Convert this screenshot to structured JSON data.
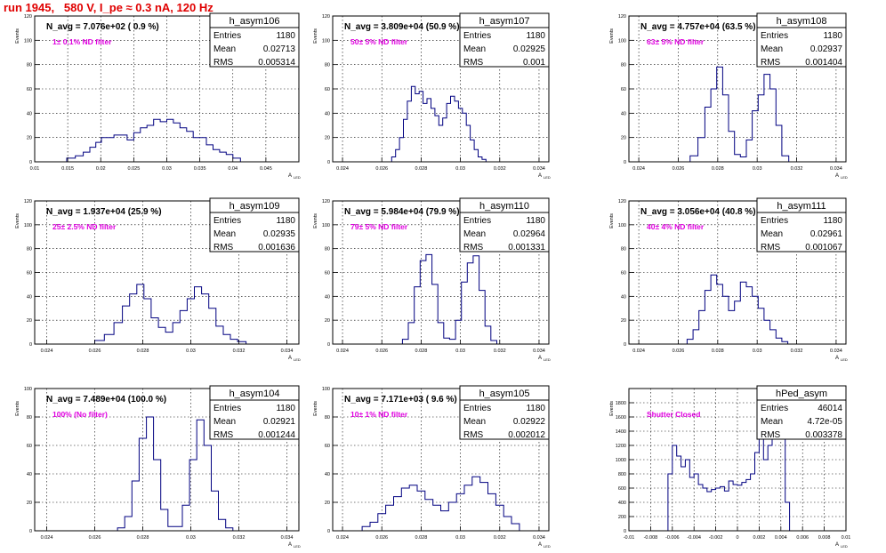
{
  "header": {
    "title": "run 1945,   580 V, I_pe ≈ 0.3 nA, 120 Hz"
  },
  "colors": {
    "title": "#e00000",
    "histogram": "#000080",
    "annotation": "#e000e0",
    "grid": "#000000"
  },
  "axis_labels": {
    "y": "Events",
    "x": "A",
    "x_sub": "LED",
    "stat_entries": "Entries",
    "stat_mean": "Mean",
    "stat_rms": "RMS"
  },
  "chart_data": [
    {
      "type": "bar",
      "name": "h_asym106",
      "title": "N_avg = 7.076e+02 ( 0.9 %)",
      "annotation": "1± 0.1% ND filter",
      "entries": "1180",
      "mean": "0.02713",
      "rms": "0.005314",
      "xlim": [
        0.01,
        0.05
      ],
      "ylim": [
        0,
        120
      ],
      "xticks": [
        "0.01",
        "0.015",
        "0.02",
        "0.025",
        "0.03",
        "0.035",
        "0.04",
        "0.045"
      ],
      "xtick_values": [
        0.01,
        0.015,
        0.02,
        0.025,
        0.03,
        0.035,
        0.04,
        0.045
      ],
      "yticks": [
        0,
        20,
        40,
        60,
        80,
        100,
        120
      ],
      "x": [
        0.0155,
        0.0168,
        0.0179,
        0.0188,
        0.0197,
        0.0205,
        0.0215,
        0.0225,
        0.0235,
        0.0245,
        0.0255,
        0.0265,
        0.0275,
        0.0285,
        0.0295,
        0.0305,
        0.0315,
        0.0325,
        0.0335,
        0.0345,
        0.0355,
        0.0365,
        0.0375,
        0.0385,
        0.0395,
        0.0405
      ],
      "values": [
        3,
        5,
        8,
        12,
        16,
        20,
        20,
        22,
        22,
        18,
        24,
        28,
        30,
        35,
        33,
        35,
        32,
        28,
        25,
        20,
        20,
        14,
        10,
        8,
        6,
        3
      ]
    },
    {
      "type": "bar",
      "name": "h_asym107",
      "title": "N_avg = 3.809e+04 (50.9 %)",
      "annotation": "50± 5% ND filter",
      "entries": "1180",
      "mean": "0.02925",
      "rms": "0.001",
      "xlim": [
        0.0235,
        0.0345
      ],
      "ylim": [
        0,
        120
      ],
      "xticks": [
        "0.024",
        "0.026",
        "0.028",
        "0.03",
        "0.032",
        "0.034"
      ],
      "xtick_values": [
        0.024,
        0.026,
        0.028,
        0.03,
        0.032,
        0.034
      ],
      "yticks": [
        0,
        20,
        40,
        60,
        80,
        100,
        120
      ],
      "x": [
        0.0266,
        0.0268,
        0.027,
        0.0272,
        0.0274,
        0.0276,
        0.0278,
        0.028,
        0.0282,
        0.0284,
        0.0286,
        0.0288,
        0.029,
        0.0292,
        0.0294,
        0.0296,
        0.0298,
        0.03,
        0.0302,
        0.0304,
        0.0306,
        0.0308,
        0.031,
        0.0312
      ],
      "values": [
        4,
        10,
        20,
        35,
        50,
        62,
        56,
        58,
        48,
        52,
        44,
        38,
        30,
        36,
        48,
        54,
        50,
        44,
        40,
        30,
        18,
        10,
        4,
        2
      ]
    },
    {
      "type": "bar",
      "name": "h_asym108",
      "title": "N_avg = 4.757e+04 (63.5 %)",
      "annotation": "63± 5% ND filter",
      "entries": "1180",
      "mean": "0.02937",
      "rms": "0.001404",
      "xlim": [
        0.0235,
        0.0345
      ],
      "ylim": [
        0,
        120
      ],
      "xticks": [
        "0.024",
        "0.026",
        "0.028",
        "0.03",
        "0.032",
        "0.034"
      ],
      "xtick_values": [
        0.024,
        0.026,
        0.028,
        0.03,
        0.032,
        0.034
      ],
      "yticks": [
        0,
        20,
        40,
        60,
        80,
        100,
        120
      ],
      "x": [
        0.0268,
        0.0272,
        0.0275,
        0.0278,
        0.0281,
        0.0284,
        0.0287,
        0.029,
        0.0293,
        0.0296,
        0.0299,
        0.0302,
        0.0305,
        0.0308,
        0.0311,
        0.0314
      ],
      "values": [
        5,
        20,
        45,
        60,
        78,
        55,
        25,
        6,
        4,
        18,
        42,
        55,
        72,
        60,
        30,
        5
      ]
    },
    {
      "type": "bar",
      "name": "h_asym109",
      "title": "N_avg = 1.937e+04 (25.9 %)",
      "annotation": "25± 2.5% ND filter",
      "entries": "1180",
      "mean": "0.02935",
      "rms": "0.001636",
      "xlim": [
        0.0235,
        0.0345
      ],
      "ylim": [
        0,
        120
      ],
      "xticks": [
        "0.024",
        "0.026",
        "0.028",
        "0.03",
        "0.032",
        "0.034"
      ],
      "xtick_values": [
        0.024,
        0.026,
        0.028,
        0.03,
        0.032,
        0.034
      ],
      "yticks": [
        0,
        20,
        40,
        60,
        80,
        100,
        120
      ],
      "x": [
        0.0262,
        0.0266,
        0.027,
        0.0273,
        0.0276,
        0.0279,
        0.0282,
        0.0285,
        0.0288,
        0.0291,
        0.0294,
        0.0297,
        0.03,
        0.0303,
        0.0306,
        0.0309,
        0.0312,
        0.0315,
        0.0318,
        0.0321
      ],
      "values": [
        3,
        8,
        18,
        32,
        42,
        50,
        38,
        22,
        14,
        10,
        18,
        28,
        38,
        48,
        42,
        30,
        15,
        8,
        4,
        2
      ]
    },
    {
      "type": "bar",
      "name": "h_asym110",
      "title": "N_avg = 5.984e+04 (79.9 %)",
      "annotation": "79± 5% ND filter",
      "entries": "1180",
      "mean": "0.02964",
      "rms": "0.001331",
      "xlim": [
        0.0235,
        0.0345
      ],
      "ylim": [
        0,
        120
      ],
      "xticks": [
        "0.024",
        "0.026",
        "0.028",
        "0.03",
        "0.032",
        "0.034"
      ],
      "xtick_values": [
        0.024,
        0.026,
        0.028,
        0.03,
        0.032,
        0.034
      ],
      "yticks": [
        0,
        20,
        40,
        60,
        80,
        100,
        120
      ],
      "x": [
        0.0272,
        0.0275,
        0.0278,
        0.0281,
        0.0284,
        0.0287,
        0.029,
        0.0293,
        0.0296,
        0.0299,
        0.0302,
        0.0305,
        0.0308,
        0.0311,
        0.0314,
        0.0317
      ],
      "values": [
        4,
        18,
        48,
        70,
        75,
        50,
        18,
        5,
        4,
        20,
        52,
        68,
        74,
        45,
        15,
        3
      ]
    },
    {
      "type": "bar",
      "name": "h_asym111",
      "title": "N_avg = 3.056e+04 (40.8 %)",
      "annotation": "40± 4% ND filter",
      "entries": "1180",
      "mean": "0.02961",
      "rms": "0.001067",
      "xlim": [
        0.0235,
        0.0345
      ],
      "ylim": [
        0,
        120
      ],
      "xticks": [
        "0.024",
        "0.026",
        "0.028",
        "0.03",
        "0.032",
        "0.034"
      ],
      "xtick_values": [
        0.024,
        0.026,
        0.028,
        0.03,
        0.032,
        0.034
      ],
      "yticks": [
        0,
        20,
        40,
        60,
        80,
        100,
        120
      ],
      "x": [
        0.0266,
        0.0269,
        0.0272,
        0.0275,
        0.0278,
        0.0281,
        0.0284,
        0.0287,
        0.029,
        0.0293,
        0.0296,
        0.0299,
        0.0302,
        0.0305,
        0.0308,
        0.0311,
        0.0314
      ],
      "values": [
        4,
        12,
        28,
        45,
        58,
        50,
        40,
        28,
        36,
        52,
        48,
        40,
        30,
        20,
        12,
        5,
        2
      ]
    },
    {
      "type": "bar",
      "name": "h_asym104",
      "title": "N_avg = 7.489e+04 (100.0 %)",
      "annotation": "100% (No filter)",
      "entries": "1180",
      "mean": "0.02921",
      "rms": "0.001244",
      "xlim": [
        0.0235,
        0.0345
      ],
      "ylim": [
        0,
        100
      ],
      "xticks": [
        "0.024",
        "0.026",
        "0.028",
        "0.03",
        "0.032",
        "0.034"
      ],
      "xtick_values": [
        0.024,
        0.026,
        0.028,
        0.03,
        0.032,
        0.034
      ],
      "yticks": [
        0,
        20,
        40,
        60,
        80,
        100
      ],
      "x": [
        0.0271,
        0.0274,
        0.0277,
        0.028,
        0.0283,
        0.0286,
        0.0289,
        0.0292,
        0.0295,
        0.0298,
        0.0301,
        0.0304,
        0.0307,
        0.031,
        0.0313,
        0.0316
      ],
      "values": [
        2,
        10,
        35,
        65,
        80,
        50,
        15,
        3,
        3,
        18,
        50,
        78,
        60,
        28,
        8,
        2
      ]
    },
    {
      "type": "bar",
      "name": "h_asym105",
      "title": "N_avg = 7.171e+03 ( 9.6 %)",
      "annotation": "10± 1% ND filter",
      "entries": "1180",
      "mean": "0.02922",
      "rms": "0.002012",
      "xlim": [
        0.0235,
        0.0345
      ],
      "ylim": [
        0,
        100
      ],
      "xticks": [
        "0.024",
        "0.026",
        "0.028",
        "0.03",
        "0.032",
        "0.034"
      ],
      "xtick_values": [
        0.024,
        0.026,
        0.028,
        0.03,
        0.032,
        0.034
      ],
      "yticks": [
        0,
        20,
        40,
        60,
        80,
        100
      ],
      "x": [
        0.0252,
        0.0256,
        0.026,
        0.0264,
        0.0268,
        0.0272,
        0.0276,
        0.028,
        0.0284,
        0.0288,
        0.0292,
        0.0296,
        0.03,
        0.0304,
        0.0308,
        0.0312,
        0.0316,
        0.032,
        0.0324,
        0.0328
      ],
      "values": [
        3,
        6,
        12,
        18,
        24,
        30,
        32,
        28,
        22,
        18,
        14,
        20,
        26,
        32,
        38,
        34,
        26,
        18,
        10,
        5
      ]
    },
    {
      "type": "bar",
      "name": "hPed_asym",
      "title": "",
      "annotation": "Shutter Closed",
      "entries": "46014",
      "mean": "4.72e-05",
      "rms": "0.003378",
      "xlim": [
        -0.01,
        0.01
      ],
      "ylim": [
        0,
        2000
      ],
      "xticks": [
        "-0.01",
        "-0.008",
        "-0.006",
        "-0.004",
        "-0.002",
        "0",
        "0.002",
        "0.004",
        "0.006",
        "0.008",
        "0.01"
      ],
      "xtick_values": [
        -0.01,
        -0.008,
        -0.006,
        -0.004,
        -0.002,
        0,
        0.002,
        0.004,
        0.006,
        0.008,
        0.01
      ],
      "yticks": [
        0,
        200,
        400,
        600,
        800,
        1000,
        1200,
        1400,
        1600,
        1800
      ],
      "x": [
        -0.0062,
        -0.0058,
        -0.0054,
        -0.005,
        -0.0046,
        -0.0042,
        -0.0038,
        -0.0034,
        -0.003,
        -0.0026,
        -0.0022,
        -0.0018,
        -0.0014,
        -0.001,
        -0.0006,
        -0.0002,
        0.0002,
        0.0006,
        0.001,
        0.0014,
        0.0018,
        0.0022,
        0.0026,
        0.003,
        0.0034,
        0.0038,
        0.0042,
        0.0046
      ],
      "values": [
        800,
        1200,
        1050,
        900,
        1000,
        750,
        800,
        650,
        600,
        550,
        580,
        600,
        620,
        560,
        700,
        650,
        640,
        680,
        720,
        800,
        1100,
        1300,
        1000,
        1200,
        1500,
        1650,
        1800,
        400
      ]
    }
  ]
}
